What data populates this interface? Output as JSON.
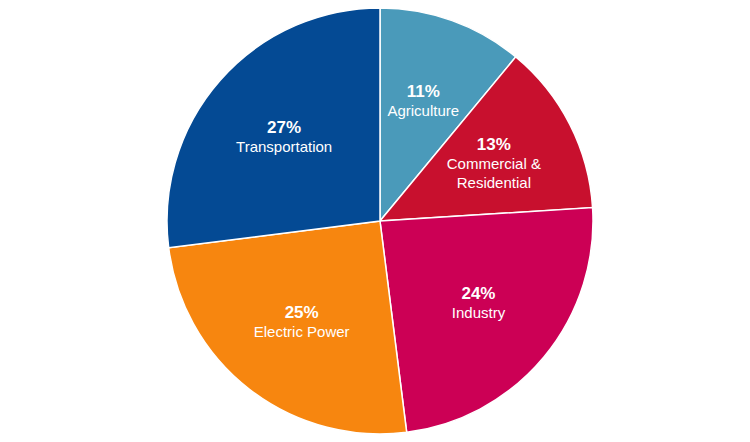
{
  "chart_data": {
    "type": "pie",
    "categories": [
      "Agriculture",
      "Commercial & Residential",
      "Industry",
      "Electric Power",
      "Transportation"
    ],
    "values": [
      11,
      13,
      24,
      25,
      27
    ],
    "value_labels": [
      "11%",
      "13%",
      "24%",
      "25%",
      "27%"
    ],
    "colors": [
      "#4a9aba",
      "#c8102e",
      "#cc0055",
      "#f7860f",
      "#044a94"
    ],
    "data_labels": true
  }
}
